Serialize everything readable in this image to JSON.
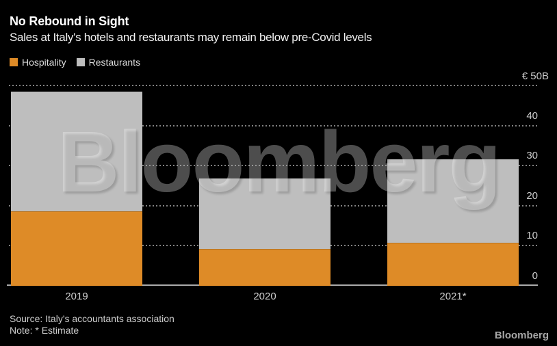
{
  "header": {
    "title": "No Rebound in Sight",
    "subtitle": "Sales at Italy's hotels and restaurants may remain below pre-Covid levels"
  },
  "legend": [
    {
      "label": "Hospitality",
      "color": "#DE8B27"
    },
    {
      "label": "Restaurants",
      "color": "#BEBEBE"
    }
  ],
  "chart_data": {
    "type": "bar",
    "stacked": true,
    "title": "No Rebound in Sight",
    "subtitle": "Sales at Italy's hotels and restaurants may remain below pre-Covid levels",
    "categories": [
      "2019",
      "2020",
      "2021*"
    ],
    "series": [
      {
        "name": "Hospitality",
        "color": "#DE8B27",
        "values": [
          18.5,
          9.2,
          10.7
        ]
      },
      {
        "name": "Restaurants",
        "color": "#BEBEBE",
        "values": [
          30.0,
          17.6,
          20.8
        ]
      }
    ],
    "unit_label": "€ 50B",
    "y_axis": {
      "min": 0,
      "max": 50,
      "tick_labels": [
        40,
        30,
        20,
        10,
        0
      ],
      "gridline_values": [
        50,
        40,
        30,
        20,
        10
      ],
      "gridline_style": "dotted",
      "labels_position": "right"
    },
    "background_color": "#000000",
    "legend_position": "top-left"
  },
  "watermark": "Bloomberg",
  "footer": {
    "source": "Source: Italy's accountants association",
    "note": "Note: * Estimate",
    "logo": "Bloomberg"
  }
}
